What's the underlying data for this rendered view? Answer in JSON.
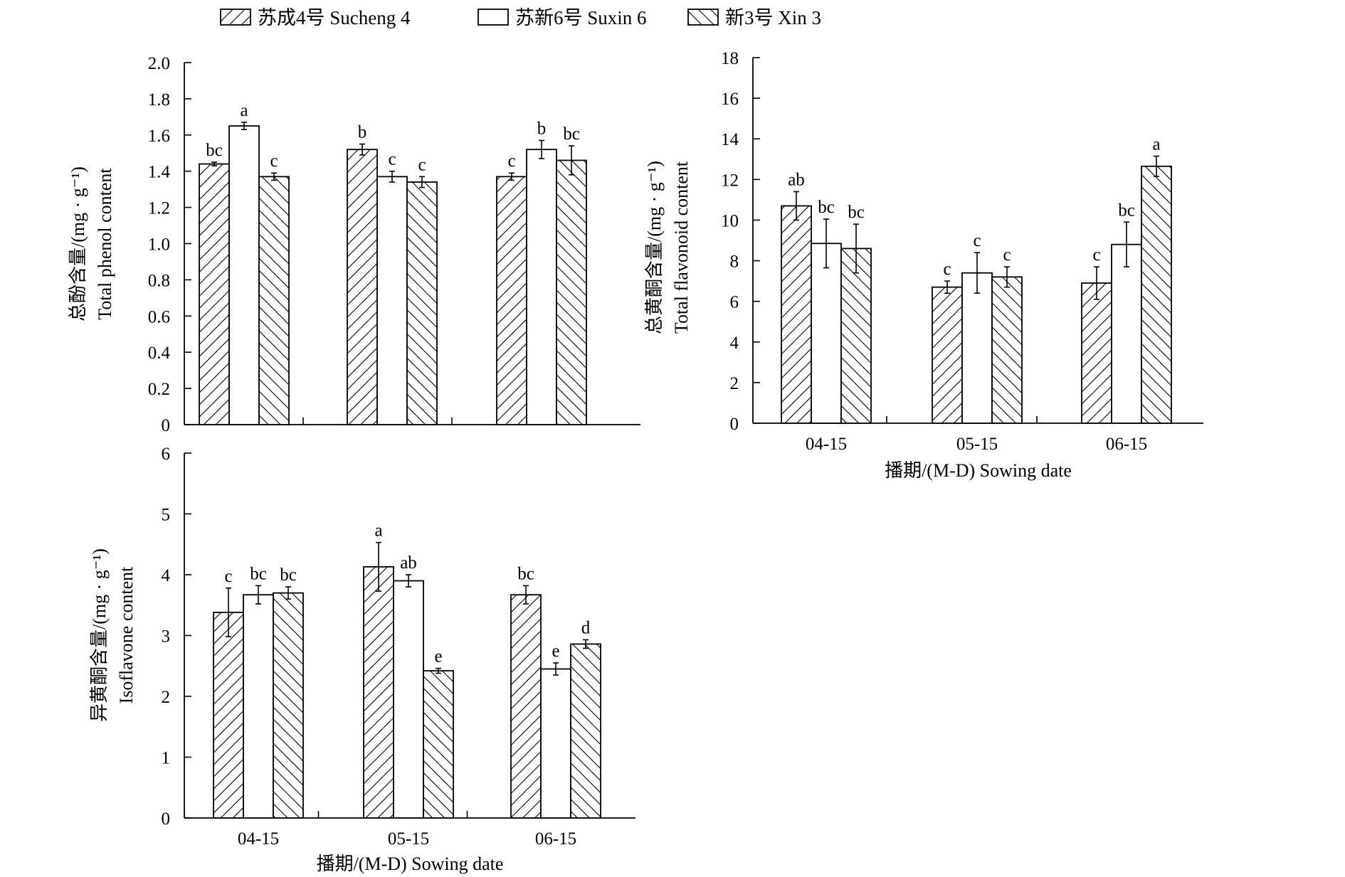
{
  "legend": {
    "entries": [
      {
        "label": "苏成4号 Sucheng 4",
        "pattern": "hatch-fwd"
      },
      {
        "label": "苏新6号 Suxin 6",
        "pattern": "open"
      },
      {
        "label": "新3号 Xin 3",
        "pattern": "hatch-back"
      }
    ]
  },
  "chart_data": [
    {
      "type": "bar",
      "id": "phenol",
      "categories": [
        "04-15",
        "05-15",
        "06-15"
      ],
      "ylabel_cn": "总酚含量/(mg · g⁻¹)",
      "ylabel_en": "Total phenol content",
      "xlabel": "",
      "ylim": [
        0,
        2.0
      ],
      "yticks": [
        "0",
        "0.2",
        "0.4",
        "0.6",
        "0.8",
        "1.0",
        "1.2",
        "1.4",
        "1.6",
        "1.8",
        "2.0"
      ],
      "show_xticklabels": false,
      "series": [
        {
          "name": "苏成4号 Sucheng 4",
          "values": [
            1.44,
            1.52,
            1.37
          ],
          "err": [
            0.01,
            0.03,
            0.02
          ],
          "labels": [
            "bc",
            "b",
            "c"
          ]
        },
        {
          "name": "苏新6号 Suxin 6",
          "values": [
            1.65,
            1.37,
            1.52
          ],
          "err": [
            0.02,
            0.03,
            0.05
          ],
          "labels": [
            "a",
            "c",
            "b"
          ]
        },
        {
          "name": "新3号 Xin 3",
          "values": [
            1.37,
            1.34,
            1.46
          ],
          "err": [
            0.02,
            0.03,
            0.08
          ],
          "labels": [
            "c",
            "c",
            "bc"
          ]
        }
      ]
    },
    {
      "type": "bar",
      "id": "flavonoid",
      "categories": [
        "04-15",
        "05-15",
        "06-15"
      ],
      "ylabel_cn": "总黄酮含量/(mg · g⁻¹)",
      "ylabel_en": "Total flavonoid content",
      "xlabel": "播期/(M-D)  Sowing date",
      "ylim": [
        0,
        18
      ],
      "yticks": [
        "0",
        "2",
        "4",
        "6",
        "8",
        "10",
        "12",
        "14",
        "16",
        "18"
      ],
      "show_xticklabels": true,
      "series": [
        {
          "name": "苏成4号 Sucheng 4",
          "values": [
            10.7,
            6.7,
            6.9
          ],
          "err": [
            0.7,
            0.3,
            0.8
          ],
          "labels": [
            "ab",
            "c",
            "c"
          ]
        },
        {
          "name": "苏新6号 Suxin 6",
          "values": [
            8.85,
            7.4,
            8.8
          ],
          "err": [
            1.2,
            1.0,
            1.1
          ],
          "labels": [
            "bc",
            "c",
            "bc"
          ]
        },
        {
          "name": "新3号 Xin 3",
          "values": [
            8.6,
            7.2,
            12.65
          ],
          "err": [
            1.2,
            0.5,
            0.5
          ],
          "labels": [
            "bc",
            "c",
            "a"
          ]
        }
      ]
    },
    {
      "type": "bar",
      "id": "isoflavone",
      "categories": [
        "04-15",
        "05-15",
        "06-15"
      ],
      "ylabel_cn": "异黄酮含量/(mg · g⁻¹)",
      "ylabel_en": "Isoflavone content",
      "xlabel": "播期/(M-D)  Sowing date",
      "ylim": [
        0,
        6
      ],
      "yticks": [
        "0",
        "1",
        "2",
        "3",
        "4",
        "5",
        "6"
      ],
      "show_xticklabels": true,
      "series": [
        {
          "name": "苏成4号 Sucheng 4",
          "values": [
            3.38,
            4.13,
            3.67
          ],
          "err": [
            0.4,
            0.4,
            0.15
          ],
          "labels": [
            "c",
            "a",
            "bc"
          ]
        },
        {
          "name": "苏新6号 Suxin 6",
          "values": [
            3.67,
            3.9,
            2.45
          ],
          "err": [
            0.15,
            0.1,
            0.1
          ],
          "labels": [
            "bc",
            "ab",
            "e"
          ]
        },
        {
          "name": "新3号 Xin 3",
          "values": [
            3.7,
            2.42,
            2.86
          ],
          "err": [
            0.1,
            0.04,
            0.07
          ],
          "labels": [
            "bc",
            "e",
            "d"
          ]
        }
      ]
    }
  ]
}
